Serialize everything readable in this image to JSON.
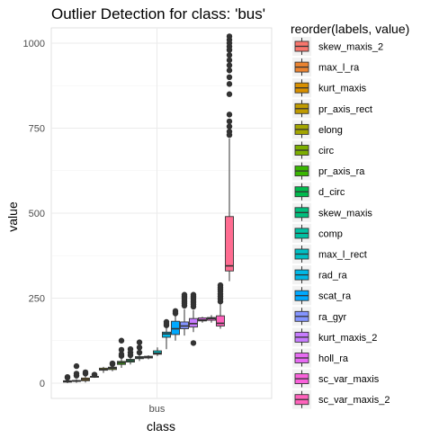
{
  "chart_data": {
    "type": "boxplot",
    "title": "Outlier Detection for class: 'bus'",
    "xlabel": "class",
    "ylabel": "value",
    "categories": [
      "bus"
    ],
    "ylim": [
      -45,
      1045
    ],
    "yticks": [
      0,
      250,
      500,
      750,
      1000
    ],
    "grid": true,
    "legend": {
      "title": "reorder(labels, value)",
      "placement": "right"
    },
    "series": [
      {
        "name": "skew_maxis_2",
        "color": "#F8766D",
        "min": 0,
        "q1": 3,
        "median": 5,
        "q3": 7,
        "max": 12,
        "outliers": [
          16,
          18
        ]
      },
      {
        "name": "max_l_ra",
        "color": "#EA8331",
        "min": 1,
        "q1": 5,
        "median": 6,
        "q3": 8,
        "max": 12,
        "outliers": [
          22,
          28,
          50
        ]
      },
      {
        "name": "kurt_maxis",
        "color": "#D89000",
        "min": 2,
        "q1": 7,
        "median": 11,
        "q3": 15,
        "max": 22,
        "outliers": [
          28,
          32
        ]
      },
      {
        "name": "pr_axis_rect",
        "color": "#C09B00",
        "min": 16,
        "q1": 18,
        "median": 19,
        "q3": 20,
        "max": 22,
        "outliers": [
          24,
          25
        ]
      },
      {
        "name": "elong",
        "color": "#A3A500",
        "min": 30,
        "q1": 38,
        "median": 40,
        "q3": 44,
        "max": 48,
        "outliers": []
      },
      {
        "name": "circ",
        "color": "#7CAE00",
        "min": 35,
        "q1": 40,
        "median": 44,
        "q3": 47,
        "max": 52,
        "outliers": [
          56,
          58
        ]
      },
      {
        "name": "pr_axis_ra",
        "color": "#39B600",
        "min": 45,
        "q1": 55,
        "median": 60,
        "q3": 64,
        "max": 72,
        "outliers": [
          80,
          85,
          98,
          125
        ]
      },
      {
        "name": "d_circ",
        "color": "#00BB4E",
        "min": 55,
        "q1": 62,
        "median": 66,
        "q3": 70,
        "max": 78,
        "outliers": [
          82,
          90,
          100
        ]
      },
      {
        "name": "skew_maxis",
        "color": "#00BF7D",
        "min": 65,
        "q1": 72,
        "median": 75,
        "q3": 78,
        "max": 84,
        "outliers": [
          90,
          105,
          120
        ]
      },
      {
        "name": "comp",
        "color": "#00C1A3",
        "min": 70,
        "q1": 74,
        "median": 76,
        "q3": 79,
        "max": 82,
        "outliers": []
      },
      {
        "name": "max_l_rect",
        "color": "#00BFC4",
        "min": 80,
        "q1": 85,
        "median": 88,
        "q3": 95,
        "max": 105,
        "outliers": []
      },
      {
        "name": "rad_ra",
        "color": "#00B8E7",
        "min": 100,
        "q1": 135,
        "median": 145,
        "q3": 150,
        "max": 165,
        "outliers": [
          170,
          175,
          180
        ]
      },
      {
        "name": "scat_ra",
        "color": "#00A9FF",
        "min": 125,
        "q1": 143,
        "median": 160,
        "q3": 182,
        "max": 200,
        "outliers": [
          205,
          212
        ]
      },
      {
        "name": "ra_gyr",
        "color": "#8494FF",
        "min": 140,
        "q1": 160,
        "median": 168,
        "q3": 180,
        "max": 218,
        "outliers": [
          228,
          234,
          240,
          245,
          250,
          255,
          260
        ]
      },
      {
        "name": "kurt_maxis_2",
        "color": "#C77CFF",
        "min": 150,
        "q1": 165,
        "median": 175,
        "q3": 190,
        "max": 215,
        "outliers": [
          118,
          225,
          232,
          238,
          245,
          250,
          255,
          260
        ]
      },
      {
        "name": "holl_ra",
        "color": "#E76BF3",
        "min": 178,
        "q1": 183,
        "median": 186,
        "q3": 192,
        "max": 195,
        "outliers": []
      },
      {
        "name": "sc_var_maxis",
        "color": "#FA62DB",
        "min": 178,
        "q1": 185,
        "median": 190,
        "q3": 193,
        "max": 200,
        "outliers": []
      },
      {
        "name": "sc_var_maxis_2",
        "color": "#FF62BC",
        "min": 160,
        "q1": 168,
        "median": 176,
        "q3": 198,
        "max": 232,
        "outliers": [
          240,
          248,
          255,
          262,
          270,
          276,
          282,
          288
        ]
      },
      {
        "name": "",
        "color": "#FF6C91",
        "min": 300,
        "q1": 330,
        "median": 345,
        "q3": 490,
        "max": 720,
        "outliers": [
          730,
          740,
          755,
          770,
          790,
          850,
          880,
          900,
          920,
          935,
          950,
          965,
          980,
          990,
          1000,
          1010,
          1020
        ]
      }
    ]
  }
}
